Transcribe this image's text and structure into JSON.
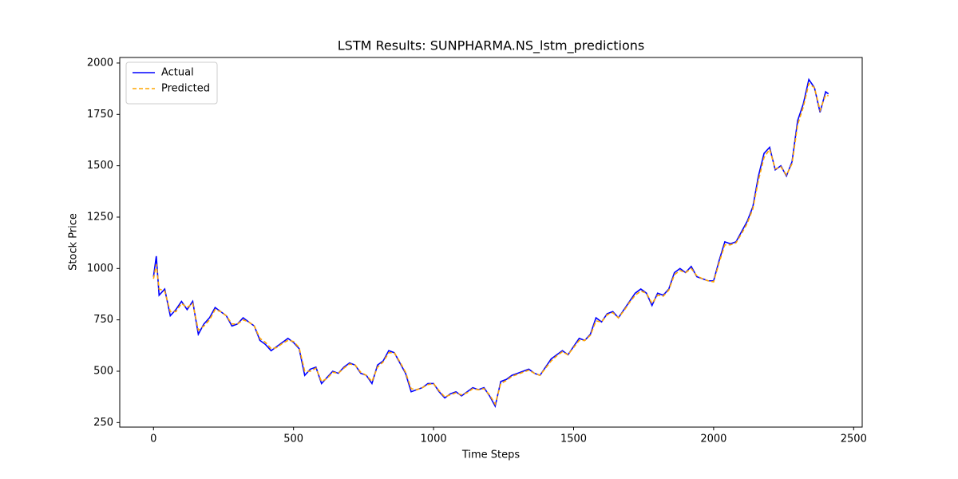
{
  "chart_data": {
    "type": "line",
    "title": "LSTM Results: SUNPHARMA.NS_lstm_predictions",
    "xlabel": "Time Steps",
    "ylabel": "Stock Price",
    "x": [
      0,
      10,
      20,
      40,
      60,
      80,
      100,
      120,
      140,
      160,
      180,
      200,
      220,
      240,
      260,
      280,
      300,
      320,
      340,
      360,
      380,
      400,
      420,
      440,
      460,
      480,
      500,
      520,
      540,
      560,
      580,
      600,
      620,
      640,
      660,
      680,
      700,
      720,
      740,
      760,
      780,
      800,
      820,
      840,
      860,
      880,
      900,
      920,
      940,
      960,
      980,
      1000,
      1020,
      1040,
      1060,
      1080,
      1100,
      1120,
      1140,
      1160,
      1180,
      1200,
      1220,
      1240,
      1260,
      1280,
      1300,
      1320,
      1340,
      1360,
      1380,
      1400,
      1420,
      1440,
      1460,
      1480,
      1500,
      1520,
      1540,
      1560,
      1580,
      1600,
      1620,
      1640,
      1660,
      1680,
      1700,
      1720,
      1740,
      1760,
      1780,
      1800,
      1820,
      1840,
      1860,
      1880,
      1900,
      1920,
      1940,
      1960,
      1980,
      2000,
      2020,
      2040,
      2060,
      2080,
      2100,
      2120,
      2140,
      2160,
      2180,
      2200,
      2220,
      2240,
      2260,
      2280,
      2300,
      2320,
      2340,
      2360,
      2380,
      2400,
      2410
    ],
    "series": [
      {
        "name": "Actual",
        "color": "#0000ff",
        "dashed": false,
        "values": [
          960,
          1060,
          870,
          900,
          770,
          800,
          840,
          800,
          840,
          680,
          730,
          760,
          810,
          790,
          770,
          720,
          730,
          760,
          740,
          720,
          650,
          630,
          600,
          620,
          640,
          660,
          640,
          610,
          480,
          510,
          520,
          440,
          470,
          500,
          490,
          520,
          540,
          530,
          490,
          480,
          440,
          530,
          550,
          600,
          590,
          540,
          490,
          400,
          410,
          420,
          440,
          440,
          400,
          370,
          390,
          400,
          380,
          400,
          420,
          410,
          420,
          380,
          330,
          450,
          460,
          480,
          490,
          500,
          510,
          490,
          480,
          520,
          560,
          580,
          600,
          580,
          620,
          660,
          650,
          680,
          760,
          740,
          780,
          790,
          760,
          800,
          840,
          880,
          900,
          880,
          820,
          880,
          870,
          900,
          980,
          1000,
          980,
          1010,
          960,
          950,
          940,
          940,
          1040,
          1130,
          1120,
          1130,
          1180,
          1230,
          1300,
          1450,
          1560,
          1590,
          1480,
          1500,
          1450,
          1520,
          1720,
          1800,
          1920,
          1880,
          1760,
          1860,
          1850
        ]
      },
      {
        "name": "Predicted",
        "color": "#ffa500",
        "dashed": true,
        "values": [
          950,
          1020,
          900,
          890,
          790,
          790,
          830,
          810,
          830,
          700,
          720,
          750,
          800,
          790,
          770,
          730,
          730,
          750,
          740,
          720,
          660,
          640,
          610,
          615,
          635,
          650,
          645,
          615,
          500,
          500,
          515,
          450,
          465,
          495,
          490,
          515,
          535,
          530,
          495,
          480,
          450,
          520,
          545,
          590,
          590,
          545,
          495,
          415,
          410,
          420,
          435,
          440,
          405,
          375,
          385,
          395,
          385,
          395,
          415,
          410,
          415,
          385,
          340,
          440,
          455,
          475,
          485,
          495,
          505,
          490,
          480,
          515,
          550,
          575,
          595,
          580,
          615,
          650,
          650,
          675,
          745,
          740,
          775,
          785,
          760,
          795,
          835,
          870,
          890,
          880,
          830,
          870,
          865,
          895,
          970,
          990,
          980,
          1000,
          965,
          950,
          940,
          935,
          1030,
          1115,
          1115,
          1125,
          1170,
          1220,
          1290,
          1430,
          1540,
          1580,
          1485,
          1495,
          1455,
          1510,
          1700,
          1785,
          1900,
          1880,
          1770,
          1845,
          1840
        ]
      }
    ],
    "xlim": [
      -120.5,
      2530.5
    ],
    "xticks": [
      0,
      500,
      1000,
      1500,
      2000,
      2500
    ],
    "ylim": [
      228,
      2027
    ],
    "yticks": [
      250,
      500,
      750,
      1000,
      1250,
      1500,
      1750,
      2000
    ],
    "grid": false,
    "legend": "upper left"
  }
}
